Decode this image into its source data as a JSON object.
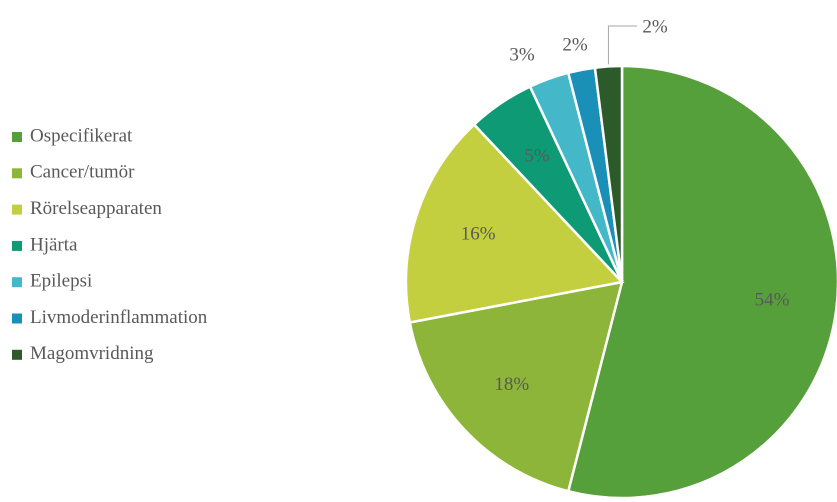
{
  "chart_data": {
    "type": "pie",
    "categories": [
      "Ospecifikerat",
      "Cancer/tumör",
      "Rörelseapparaten",
      "Hjärta",
      "Epilepsi",
      "Livmoderinflammation",
      "Magomvridning"
    ],
    "values": [
      54,
      18,
      16,
      5,
      3,
      2,
      2
    ],
    "value_labels": [
      "54%",
      "18%",
      "16%",
      "5%",
      "3%",
      "2%",
      "2%"
    ],
    "colors": [
      "#55a03a",
      "#8db53a",
      "#c3cf3e",
      "#0e9a74",
      "#44b8c8",
      "#1a8fb8",
      "#2d5a2a"
    ],
    "legend": "left"
  }
}
